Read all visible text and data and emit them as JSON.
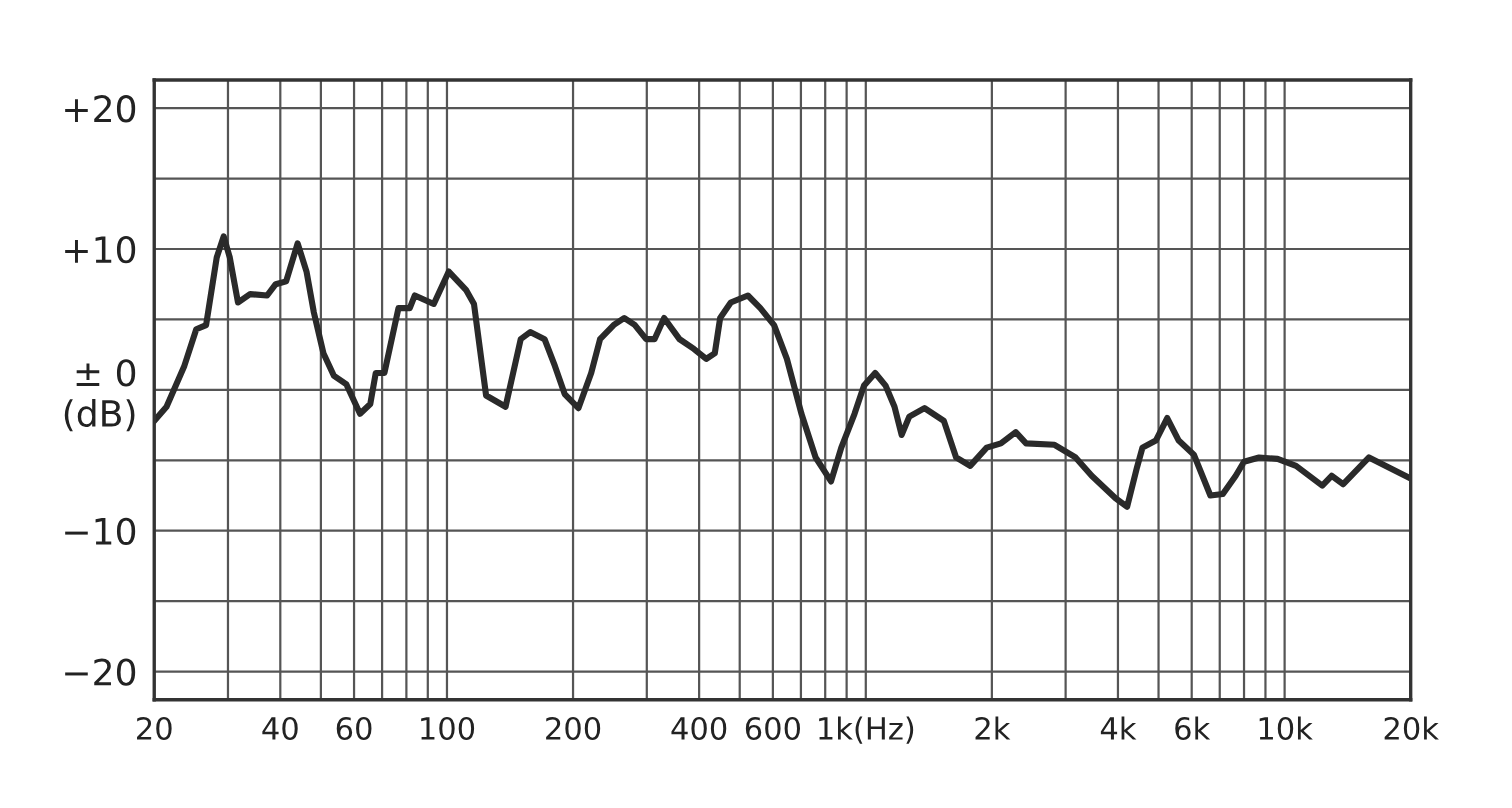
{
  "chart_data": {
    "type": "line",
    "log": "x",
    "grid": true,
    "marker": "none",
    "line_style": "solid",
    "xlim": [
      20,
      20000
    ],
    "ylim": [
      -22,
      22
    ],
    "xticks": [
      {
        "value": 20,
        "label": "20"
      },
      {
        "value": 30,
        "label": null
      },
      {
        "value": 40,
        "label": "40"
      },
      {
        "value": 50,
        "label": null
      },
      {
        "value": 60,
        "label": "60"
      },
      {
        "value": 70,
        "label": null
      },
      {
        "value": 80,
        "label": null
      },
      {
        "value": 90,
        "label": null
      },
      {
        "value": 100,
        "label": "100"
      },
      {
        "value": 200,
        "label": "200"
      },
      {
        "value": 300,
        "label": null
      },
      {
        "value": 400,
        "label": "400"
      },
      {
        "value": 500,
        "label": null
      },
      {
        "value": 600,
        "label": "600"
      },
      {
        "value": 700,
        "label": null
      },
      {
        "value": 800,
        "label": null
      },
      {
        "value": 900,
        "label": null
      },
      {
        "value": 1000,
        "label": "1k(Hz)"
      },
      {
        "value": 2000,
        "label": "2k"
      },
      {
        "value": 3000,
        "label": null
      },
      {
        "value": 4000,
        "label": "4k"
      },
      {
        "value": 5000,
        "label": null
      },
      {
        "value": 6000,
        "label": "6k"
      },
      {
        "value": 7000,
        "label": null
      },
      {
        "value": 8000,
        "label": null
      },
      {
        "value": 9000,
        "label": null
      },
      {
        "value": 10000,
        "label": "10k"
      },
      {
        "value": 20000,
        "label": "20k"
      }
    ],
    "yticks": [
      {
        "value": -20,
        "label": "−20"
      },
      {
        "value": -15,
        "label": null
      },
      {
        "value": -10,
        "label": "−10"
      },
      {
        "value": -5,
        "label": null
      },
      {
        "value": 0,
        "label": "± 0\n(dB)"
      },
      {
        "value": 5,
        "label": null
      },
      {
        "value": 10,
        "label": "+10"
      },
      {
        "value": 15,
        "label": null
      },
      {
        "value": 20,
        "label": "+20"
      }
    ],
    "series": [
      {
        "color": "#2a2a2a",
        "x": [
          20,
          21.4,
          23.6,
          25.2,
          26.6,
          28.2,
          29.3,
          30.3,
          31.7,
          33.9,
          37.2,
          39,
          41.3,
          44,
          46.2,
          48.1,
          50.7,
          53.7,
          57.5,
          62,
          65.6,
          67.6,
          70.9,
          76.6,
          81.5,
          83.8,
          93,
          101,
          111,
          116,
          124,
          138,
          150,
          158,
          171,
          181,
          191,
          206,
          221,
          232,
          250,
          265,
          281,
          299,
          313,
          330,
          359,
          389,
          416,
          436,
          449,
          476,
          523,
          560,
          604,
          648,
          702,
          759,
          798,
          826,
          874,
          940,
          990,
          1053,
          1115,
          1171,
          1218,
          1270,
          1381,
          1536,
          1643,
          1775,
          1944,
          2102,
          2280,
          2414,
          2822,
          3168,
          3462,
          3947,
          4207,
          4442,
          4577,
          4926,
          5244,
          5587,
          6072,
          6649,
          7120,
          7643,
          8000,
          8690,
          9620,
          10650,
          12300,
          12950,
          13800,
          15900,
          19700
        ],
        "values": [
          -2.2,
          -1.2,
          1.7,
          4.3,
          4.6,
          9.4,
          10.9,
          9.4,
          6.2,
          6.8,
          6.7,
          7.5,
          7.7,
          10.4,
          8.4,
          5.5,
          2.6,
          1,
          0.4,
          -1.7,
          -1,
          1.2,
          1.2,
          5.8,
          5.8,
          6.7,
          6.1,
          8.4,
          7.1,
          6.1,
          -0.4,
          -1.2,
          3.6,
          4.1,
          3.6,
          1.7,
          -0.3,
          -1.3,
          1.2,
          3.6,
          4.6,
          5.1,
          4.6,
          3.6,
          3.6,
          5.1,
          3.6,
          2.9,
          2.2,
          2.6,
          5.1,
          6.2,
          6.7,
          5.8,
          4.6,
          2.2,
          -1.7,
          -4.8,
          -5.8,
          -6.5,
          -4.1,
          -1.7,
          0.3,
          1.2,
          0.3,
          -1.2,
          -3.2,
          -1.9,
          -1.3,
          -2.2,
          -4.8,
          -5.4,
          -4.1,
          -3.8,
          -3,
          -3.8,
          -3.9,
          -4.8,
          -6.1,
          -7.7,
          -8.3,
          -5.5,
          -4.1,
          -3.6,
          -2,
          -3.6,
          -4.6,
          -7.5,
          -7.4,
          -6.1,
          -5.1,
          -4.8,
          -4.9,
          -5.4,
          -6.8,
          -6.1,
          -6.7,
          -4.8,
          -6.2
        ]
      }
    ]
  }
}
